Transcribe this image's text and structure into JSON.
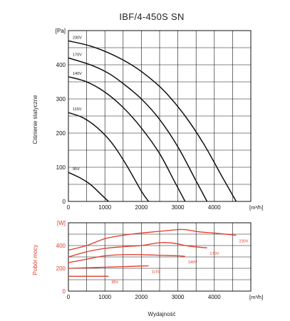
{
  "chart_data": [
    {
      "type": "line",
      "title": "IBF/4-450S SN",
      "ylabel": "Ciśnienie statyczne",
      "y_unit": "[Pa]",
      "x_unit": "[m³/h]",
      "xlim": [
        0,
        5000
      ],
      "ylim": [
        0,
        500
      ],
      "x_ticks": [
        "0",
        "1000",
        "2000",
        "3000",
        "4000"
      ],
      "y_ticks": [
        "0",
        "100",
        "200",
        "300",
        "400"
      ],
      "grid": true,
      "series": [
        {
          "name": "230V",
          "x": [
            0,
            600,
            1200,
            1800,
            2300,
            2700,
            3200,
            3700,
            4200,
            4600
          ],
          "y": [
            470,
            455,
            430,
            395,
            355,
            315,
            250,
            170,
            75,
            0
          ]
        },
        {
          "name": "170V",
          "x": [
            0,
            600,
            1100,
            1500,
            2000,
            2500,
            3000,
            3500,
            3800
          ],
          "y": [
            420,
            400,
            375,
            345,
            300,
            240,
            160,
            60,
            0
          ]
        },
        {
          "name": "140V",
          "x": [
            0,
            500,
            1000,
            1500,
            2000,
            2500,
            2900,
            3200
          ],
          "y": [
            365,
            350,
            320,
            275,
            215,
            140,
            60,
            0
          ]
        },
        {
          "name": "115V",
          "x": [
            0,
            400,
            800,
            1200,
            1600,
            2000,
            2200
          ],
          "y": [
            260,
            245,
            215,
            170,
            105,
            30,
            0
          ]
        },
        {
          "name": "95V",
          "x": [
            0,
            300,
            600,
            900,
            1100
          ],
          "y": [
            85,
            70,
            50,
            20,
            0
          ]
        }
      ]
    },
    {
      "type": "line",
      "ylabel": "Pobór mocy",
      "y_unit": "[W]",
      "x_unit": "[m³/h]",
      "xlabel": "Wydajność",
      "xlim": [
        0,
        5000
      ],
      "ylim": [
        0,
        600
      ],
      "x_ticks": [
        "0",
        "1000",
        "2000",
        "3000",
        "4000"
      ],
      "y_ticks": [
        "0",
        "200",
        "400"
      ],
      "grid": true,
      "series_color": "#e03a2a",
      "series": [
        {
          "name": "230V",
          "x": [
            0,
            500,
            1000,
            1500,
            2000,
            2500,
            3000,
            3200,
            3600,
            4000,
            4600
          ],
          "y": [
            360,
            400,
            460,
            490,
            510,
            525,
            540,
            540,
            520,
            510,
            490
          ]
        },
        {
          "name": "170V",
          "x": [
            0,
            500,
            1000,
            1500,
            2000,
            2500,
            2900,
            3300,
            3800
          ],
          "y": [
            300,
            345,
            375,
            390,
            400,
            425,
            420,
            395,
            380
          ]
        },
        {
          "name": "140V",
          "x": [
            0,
            500,
            1000,
            1500,
            2000,
            2500,
            3000,
            3200
          ],
          "y": [
            250,
            280,
            310,
            320,
            320,
            315,
            310,
            305
          ]
        },
        {
          "name": "115V",
          "x": [
            0,
            500,
            1000,
            1500,
            2000,
            2200
          ],
          "y": [
            200,
            205,
            210,
            215,
            220,
            222
          ]
        },
        {
          "name": "95V",
          "x": [
            0,
            400,
            800,
            1100
          ],
          "y": [
            130,
            130,
            130,
            130
          ]
        }
      ]
    }
  ]
}
